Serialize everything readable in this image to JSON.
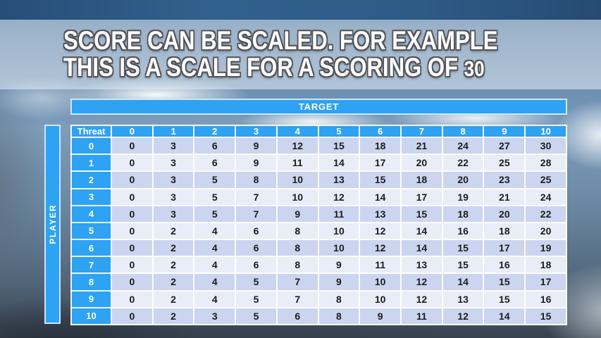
{
  "title": {
    "line1": "SCORE CAN BE SCALED. FOR EXAMPLE",
    "line2_prefix": "THIS IS A SCALE FOR A SCORING OF ",
    "line2_number": "30"
  },
  "matrix": {
    "target_label": "TARGET",
    "player_label": "PLAYER",
    "corner_label": "Threat",
    "column_headers": [
      "0",
      "1",
      "2",
      "3",
      "4",
      "5",
      "6",
      "7",
      "8",
      "9",
      "10"
    ],
    "rows": [
      {
        "label": "0",
        "values": [
          0,
          3,
          6,
          9,
          12,
          15,
          18,
          21,
          24,
          27,
          30
        ]
      },
      {
        "label": "1",
        "values": [
          0,
          3,
          6,
          9,
          11,
          14,
          17,
          20,
          22,
          25,
          28
        ]
      },
      {
        "label": "2",
        "values": [
          0,
          3,
          5,
          8,
          10,
          13,
          15,
          18,
          20,
          23,
          25
        ]
      },
      {
        "label": "3",
        "values": [
          0,
          3,
          5,
          7,
          10,
          12,
          14,
          17,
          19,
          21,
          24
        ]
      },
      {
        "label": "4",
        "values": [
          0,
          3,
          5,
          7,
          9,
          11,
          13,
          15,
          18,
          20,
          22
        ]
      },
      {
        "label": "5",
        "values": [
          0,
          2,
          4,
          6,
          8,
          10,
          12,
          14,
          16,
          18,
          20
        ]
      },
      {
        "label": "6",
        "values": [
          0,
          2,
          4,
          6,
          8,
          10,
          12,
          14,
          15,
          17,
          19
        ]
      },
      {
        "label": "7",
        "values": [
          0,
          2,
          4,
          6,
          8,
          9,
          11,
          13,
          15,
          16,
          18
        ]
      },
      {
        "label": "8",
        "values": [
          0,
          2,
          4,
          5,
          7,
          9,
          10,
          12,
          14,
          15,
          17
        ]
      },
      {
        "label": "9",
        "values": [
          0,
          2,
          4,
          5,
          7,
          8,
          10,
          12,
          13,
          15,
          16
        ]
      },
      {
        "label": "10",
        "values": [
          0,
          2,
          3,
          5,
          6,
          8,
          9,
          11,
          12,
          14,
          15
        ]
      }
    ]
  },
  "colors": {
    "accent_blue": "#2EA2F3",
    "row_shade_dark": "#CBD5EF",
    "row_shade_light": "#E9EDF8",
    "cell_text": "#1C1C1C",
    "title_text": "#FFFFFF",
    "title_outline": "#55555A",
    "top_strip_blue": "#2D5985"
  }
}
